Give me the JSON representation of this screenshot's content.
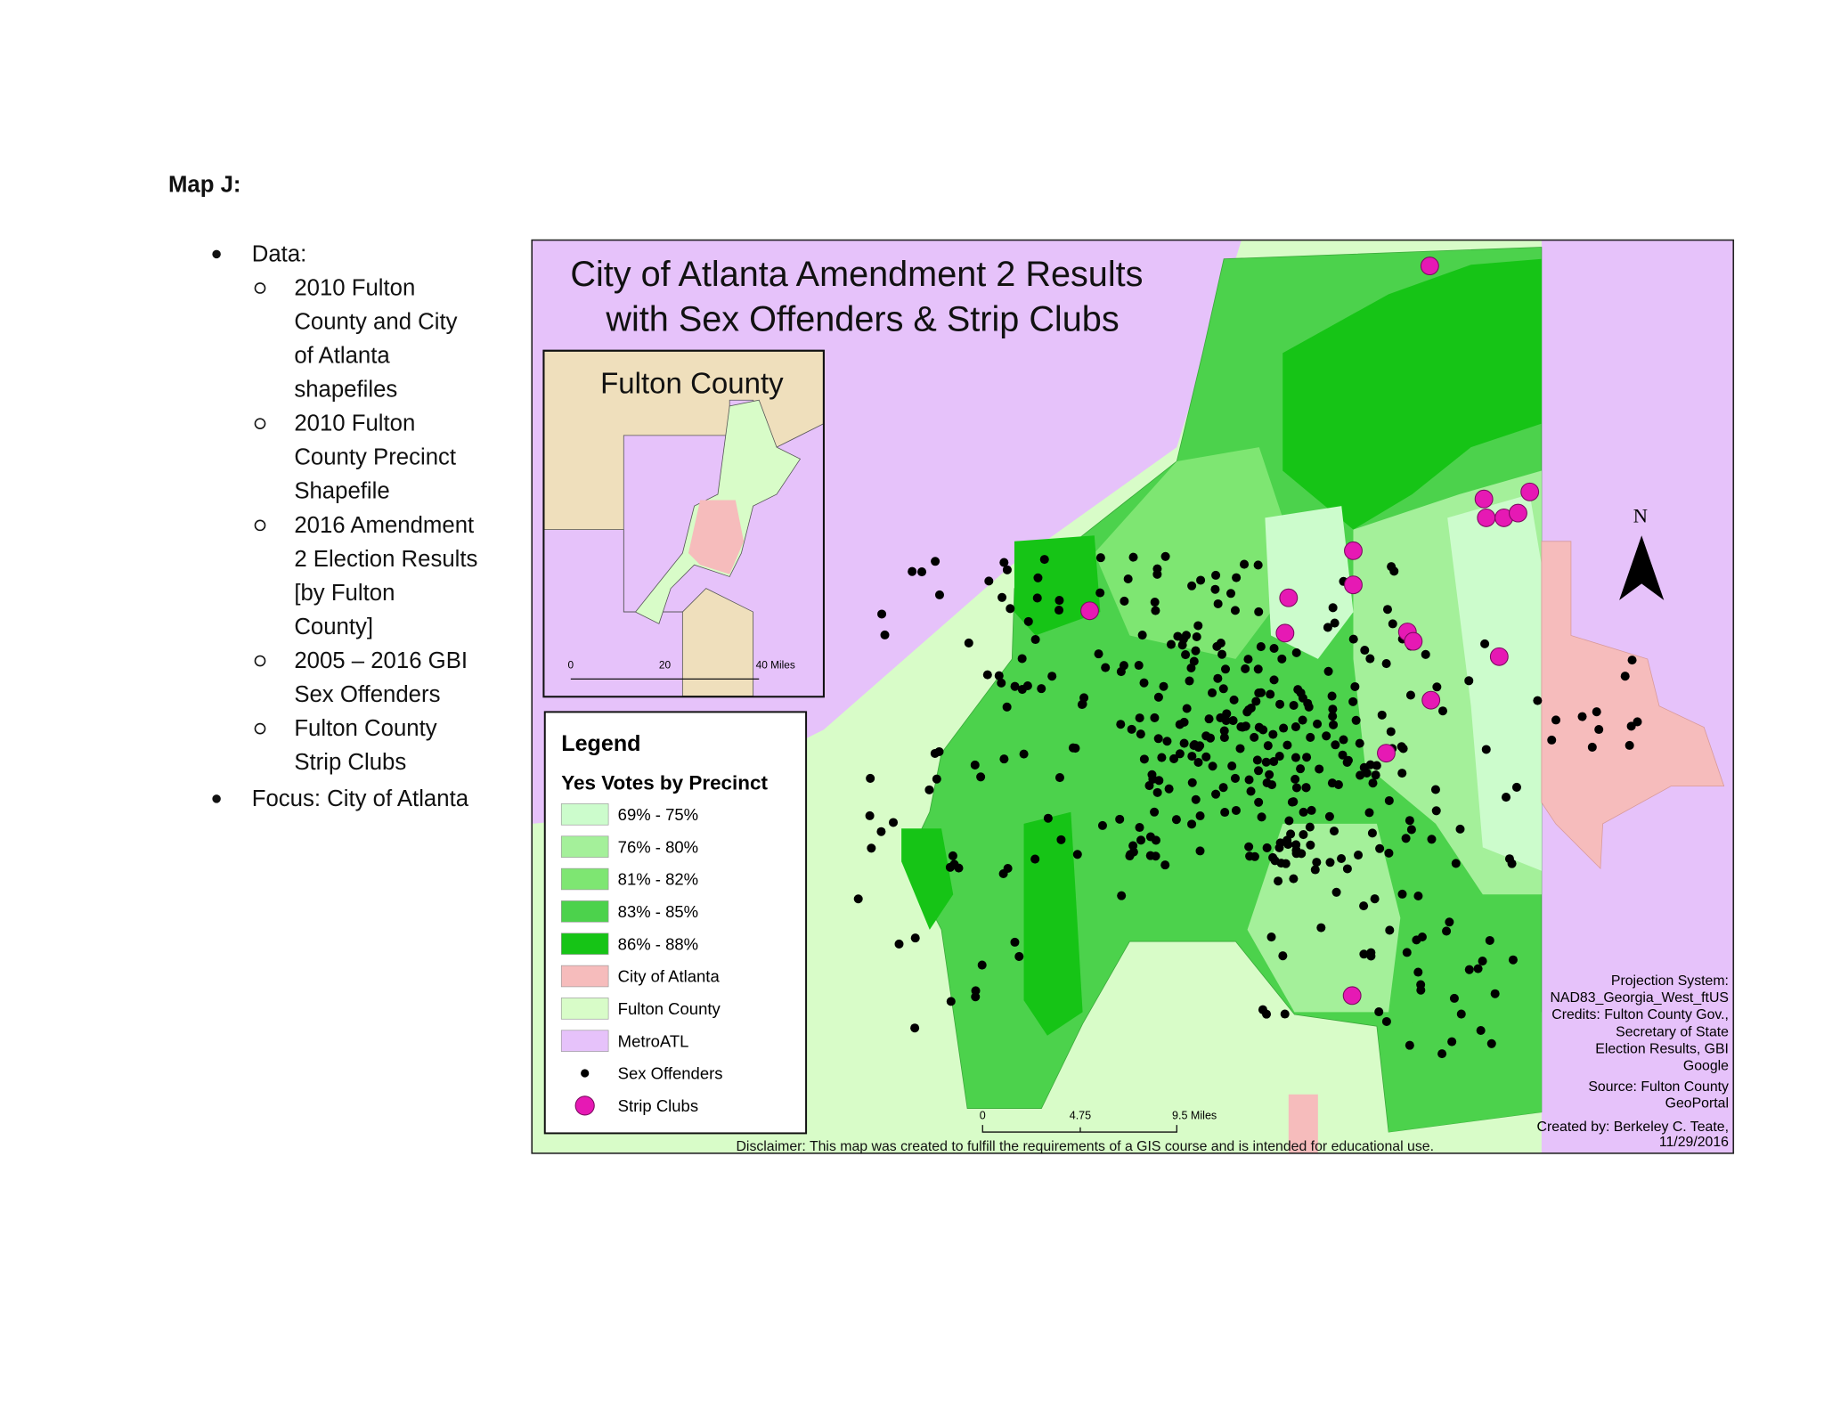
{
  "header": {
    "title": "Map J:"
  },
  "bullets": [
    {
      "text": "Data:",
      "subitems": [
        {
          "lines": [
            "2010 Fulton",
            "County and City",
            "of Atlanta",
            "shapefiles"
          ]
        },
        {
          "lines": [
            "2010 Fulton",
            "County Precinct",
            "Shapefile"
          ]
        },
        {
          "lines": [
            "2016 Amendment",
            "2 Election Results",
            "[by Fulton",
            "County]"
          ]
        },
        {
          "lines": [
            "2005 – 2016 GBI",
            "Sex Offenders"
          ]
        },
        {
          "lines": [
            "Fulton County",
            "Strip Clubs"
          ]
        }
      ]
    },
    {
      "text": "Focus: City of Atlanta",
      "subitems": []
    }
  ],
  "map": {
    "title": [
      "City of Atlanta Amendment 2 Results",
      "with Sex Offenders & Strip Clubs"
    ],
    "inset": {
      "title": "Fulton County",
      "scale_labels": [
        "0",
        "20",
        "40 Miles"
      ]
    },
    "legend": {
      "title": "Legend",
      "subtitle": "Yes Votes by Precinct",
      "items": [
        {
          "label": "69% - 75%",
          "color": "#ccfccc",
          "kind": "swatch"
        },
        {
          "label": "76% - 80%",
          "color": "#a4f09a",
          "kind": "swatch"
        },
        {
          "label": "81% - 82%",
          "color": "#7ee672",
          "kind": "swatch"
        },
        {
          "label": "83% - 85%",
          "color": "#4cd24c",
          "kind": "swatch"
        },
        {
          "label": "86% - 88%",
          "color": "#16c416",
          "kind": "swatch"
        },
        {
          "label": "City of Atlanta",
          "color": "#f6bcbc",
          "kind": "swatch"
        },
        {
          "label": "Fulton County",
          "color": "#d8fcc8",
          "kind": "swatch"
        },
        {
          "label": "MetroATL",
          "color": "#e6c2fa",
          "kind": "swatch"
        },
        {
          "label": "Sex Offenders",
          "color": "#000000",
          "kind": "dot"
        },
        {
          "label": "Strip Clubs",
          "color": "#e619b4",
          "kind": "club"
        }
      ]
    },
    "north": "N",
    "credits": [
      "Projection System:",
      "NAD83_Georgia_West_ftUS",
      "Credits: Fulton County Gov.,",
      "Secretary of State",
      "Election Results, GBI",
      "Google"
    ],
    "source": [
      "Source: Fulton County",
      "GeoPortal"
    ],
    "created": [
      "Created by: Berkeley C. Teate,",
      "11/29/2016"
    ],
    "scale_labels": [
      "0",
      "4.75",
      "9.5 Miles"
    ],
    "disclaimer": "Disclaimer: This map was created to fulfill the requirements of a GIS course and is intended for educational use."
  }
}
